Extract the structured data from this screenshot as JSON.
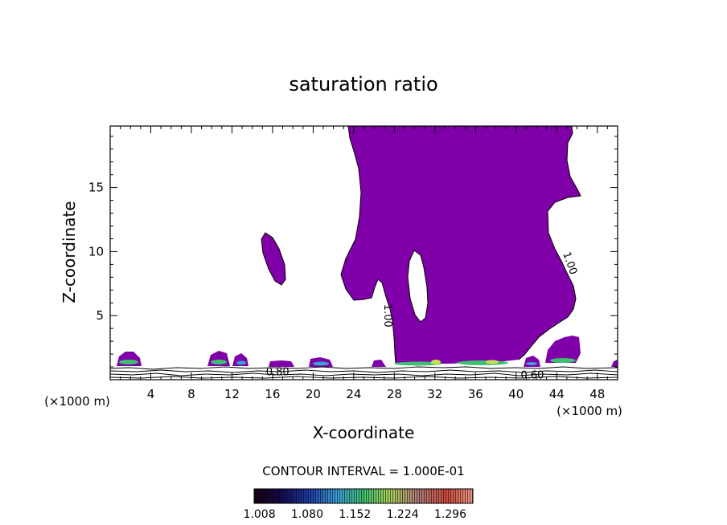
{
  "chart_data": {
    "type": "contour",
    "title": "saturation ratio",
    "xlabel": "X-coordinate",
    "ylabel": "Z-coordinate",
    "x_unit_label": "(×1000 m)",
    "z_unit_label": "(×1000 m)",
    "xlim": [
      0,
      50
    ],
    "ylim": [
      0,
      19.8
    ],
    "x_ticks": [
      4,
      8,
      12,
      16,
      20,
      24,
      28,
      32,
      36,
      40,
      44,
      48
    ],
    "y_ticks": [
      5,
      10,
      15
    ],
    "contour_labels": [
      {
        "text": "0.80",
        "x": 16.5,
        "z": 0.35
      },
      {
        "text": "0.60",
        "x": 41.6,
        "z": 0.1
      },
      {
        "text": "1.00",
        "x": 27.0,
        "z": 5.0
      },
      {
        "text": "1.00",
        "x": 45.0,
        "z": 9.0
      }
    ],
    "contour_interval_text": "CONTOUR INTERVAL = 1.000E-01",
    "colorbar": {
      "range": [
        1.0,
        1.33
      ],
      "tick_labels": [
        "1.008",
        "1.080",
        "1.152",
        "1.224",
        "1.296"
      ],
      "tick_values": [
        1.008,
        1.08,
        1.152,
        1.224,
        1.296
      ]
    },
    "colors": {
      "supersaturated_fill": "#7f00a8",
      "contour_line": "#000000",
      "axis": "#000000"
    },
    "grid": false
  }
}
